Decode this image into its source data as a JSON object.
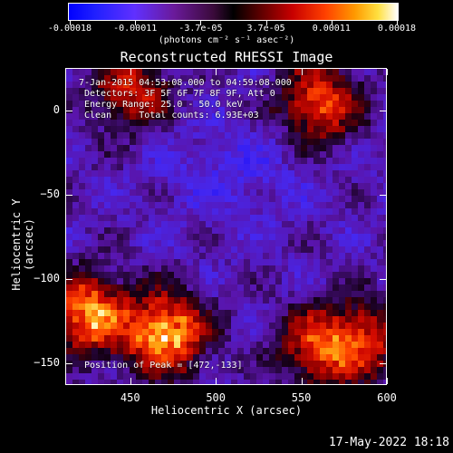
{
  "colorbar": {
    "tick_labels": [
      "-0.00018",
      "-0.00011",
      "-3.7e-05",
      "3.7e-05",
      "0.00011",
      "0.00018"
    ],
    "unit_label": "(photons cm⁻² s⁻¹ asec⁻²)",
    "range": [
      -0.00018,
      0.00018
    ],
    "colors": [
      "#0000ff",
      "#6030ff",
      "#000000",
      "#c80000",
      "#ff9a00",
      "#ffffff"
    ]
  },
  "info": {
    "time": "7-Jan-2015 04:53:08.000 to 04:59:08.000",
    "detectors": "Detectors: 3F 5F 6F 7F 8F 9F, Att 0",
    "energy": "Energy Range: 25.0 - 50.0 keV",
    "clean": "Clean     Total counts: 6.93E+03",
    "peak": "Position of Peak = [472,-133]"
  },
  "footer": {
    "date": "17-May-2022 18:18"
  },
  "chart_data": {
    "type": "heatmap",
    "title": "Reconstructed RHESSI Image",
    "xlabel": "Heliocentric X (arcsec)",
    "ylabel": "Heliocentric Y (arcsec)",
    "xlim": [
      412,
      600
    ],
    "ylim": [
      -163,
      25
    ],
    "x_ticks": [
      450,
      500,
      550,
      600
    ],
    "y_ticks": [
      0,
      -50,
      -100,
      -150
    ],
    "x_tick_labels": [
      "450",
      "500",
      "550",
      "600"
    ],
    "y_tick_labels": [
      "0",
      "−50",
      "−100",
      "−150"
    ],
    "peak": [
      472,
      -133
    ],
    "bright_sources": [
      {
        "x": 470,
        "y": -132,
        "level": 1.0
      },
      {
        "x": 425,
        "y": -120,
        "level": 0.9
      },
      {
        "x": 560,
        "y": 5,
        "level": 0.75
      },
      {
        "x": 450,
        "y": 12,
        "level": 0.6
      },
      {
        "x": 560,
        "y": -140,
        "level": 0.7
      },
      {
        "x": 590,
        "y": -135,
        "level": 0.55
      }
    ]
  }
}
